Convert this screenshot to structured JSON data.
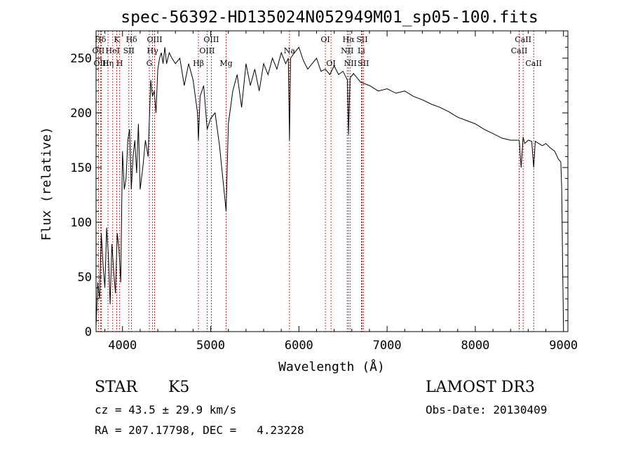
{
  "chart_data": {
    "type": "line",
    "title": "spec-56392-HD135024N052949M01_sp05-100.fits",
    "xlabel": "Wavelength (Å)",
    "ylabel": "Flux (relative)",
    "xlim": [
      3700,
      9050
    ],
    "ylim": [
      0,
      275
    ],
    "xticks": [
      4000,
      5000,
      6000,
      7000,
      8000,
      9000
    ],
    "yticks": [
      0,
      50,
      100,
      150,
      200,
      250
    ],
    "grid": false,
    "series": [
      {
        "name": "spectrum",
        "x": [
          3700,
          3720,
          3740,
          3760,
          3780,
          3800,
          3820,
          3840,
          3860,
          3880,
          3900,
          3920,
          3940,
          3960,
          3980,
          4000,
          4020,
          4040,
          4060,
          4080,
          4100,
          4120,
          4140,
          4160,
          4180,
          4200,
          4230,
          4260,
          4290,
          4320,
          4340,
          4360,
          4380,
          4400,
          4420,
          4440,
          4460,
          4480,
          4500,
          4530,
          4560,
          4600,
          4650,
          4700,
          4750,
          4800,
          4850,
          4861,
          4880,
          4920,
          4960,
          5000,
          5050,
          5100,
          5150,
          5175,
          5200,
          5250,
          5300,
          5350,
          5400,
          5450,
          5500,
          5550,
          5600,
          5650,
          5700,
          5750,
          5800,
          5850,
          5880,
          5893,
          5905,
          5950,
          6000,
          6050,
          6100,
          6150,
          6200,
          6250,
          6300,
          6350,
          6400,
          6450,
          6500,
          6550,
          6563,
          6580,
          6620,
          6700,
          6800,
          6900,
          7000,
          7100,
          7200,
          7300,
          7400,
          7500,
          7600,
          7700,
          7800,
          7900,
          8000,
          8100,
          8200,
          8300,
          8400,
          8498,
          8520,
          8542,
          8560,
          8600,
          8640,
          8662,
          8680,
          8720,
          8760,
          8800,
          8850,
          8900,
          8940,
          8970,
          8980,
          8990,
          9000
        ],
        "y": [
          5,
          45,
          30,
          90,
          60,
          40,
          95,
          70,
          25,
          80,
          55,
          35,
          90,
          75,
          45,
          165,
          130,
          140,
          175,
          185,
          130,
          160,
          175,
          145,
          190,
          130,
          150,
          175,
          160,
          230,
          215,
          220,
          200,
          240,
          250,
          255,
          245,
          260,
          245,
          255,
          250,
          245,
          250,
          225,
          245,
          230,
          200,
          175,
          215,
          225,
          185,
          195,
          200,
          170,
          130,
          110,
          190,
          220,
          235,
          205,
          245,
          225,
          240,
          220,
          245,
          235,
          250,
          240,
          255,
          245,
          250,
          175,
          250,
          255,
          260,
          248,
          240,
          245,
          250,
          238,
          240,
          235,
          243,
          235,
          238,
          230,
          180,
          232,
          236,
          228,
          225,
          220,
          222,
          218,
          220,
          215,
          212,
          208,
          205,
          201,
          196,
          193,
          190,
          185,
          181,
          177,
          175,
          175,
          150,
          178,
          172,
          175,
          174,
          150,
          174,
          172,
          170,
          172,
          168,
          165,
          158,
          155,
          130,
          60,
          5
        ]
      }
    ],
    "line_markers": [
      {
        "label": "Hδ",
        "x": 3750,
        "row": 0
      },
      {
        "label": "K",
        "x": 3934,
        "row": 0
      },
      {
        "label": "Hδ",
        "x": 4102,
        "row": 0
      },
      {
        "label": "OII",
        "x": 3727,
        "row": 1
      },
      {
        "label": "HeI",
        "x": 3889,
        "row": 1
      },
      {
        "label": "SII",
        "x": 4072,
        "row": 1
      },
      {
        "label": "OIII",
        "x": 3760,
        "row": 2
      },
      {
        "label": "Hη",
        "x": 3835,
        "row": 2
      },
      {
        "label": "H",
        "x": 3968,
        "row": 2
      },
      {
        "label": "OIII",
        "x": 4364,
        "row": 0
      },
      {
        "label": "Hγ",
        "x": 4341,
        "row": 1
      },
      {
        "label": "G",
        "x": 4304,
        "row": 2
      },
      {
        "label": "Hβ",
        "x": 4861,
        "row": 2
      },
      {
        "label": "OIII",
        "x": 5007,
        "row": 0
      },
      {
        "label": "OIII",
        "x": 4959,
        "row": 1
      },
      {
        "label": "Mg",
        "x": 5175,
        "row": 2
      },
      {
        "label": "Na",
        "x": 5893,
        "row": 1
      },
      {
        "label": "OI",
        "x": 6300,
        "row": 0
      },
      {
        "label": "OI",
        "x": 6364,
        "row": 2
      },
      {
        "label": "Hα",
        "x": 6563,
        "row": 0
      },
      {
        "label": "SII",
        "x": 6717,
        "row": 0
      },
      {
        "label": "NII",
        "x": 6548,
        "row": 1
      },
      {
        "label": "Li",
        "x": 6708,
        "row": 1
      },
      {
        "label": "NII",
        "x": 6584,
        "row": 2
      },
      {
        "label": "SII",
        "x": 6731,
        "row": 2
      },
      {
        "label": "CaII",
        "x": 8542,
        "row": 0
      },
      {
        "label": "CaII",
        "x": 8498,
        "row": 1
      },
      {
        "label": "CaII",
        "x": 8662,
        "row": 2
      }
    ]
  },
  "info": {
    "object_class": "STAR",
    "subclass": "K5",
    "survey": "LAMOST DR3",
    "redshift": "cz = 43.5 ± 29.9 km/s",
    "obs_date": "Obs-Date: 20130409",
    "coordinates": "RA = 207.17798, DEC =   4.23228"
  }
}
